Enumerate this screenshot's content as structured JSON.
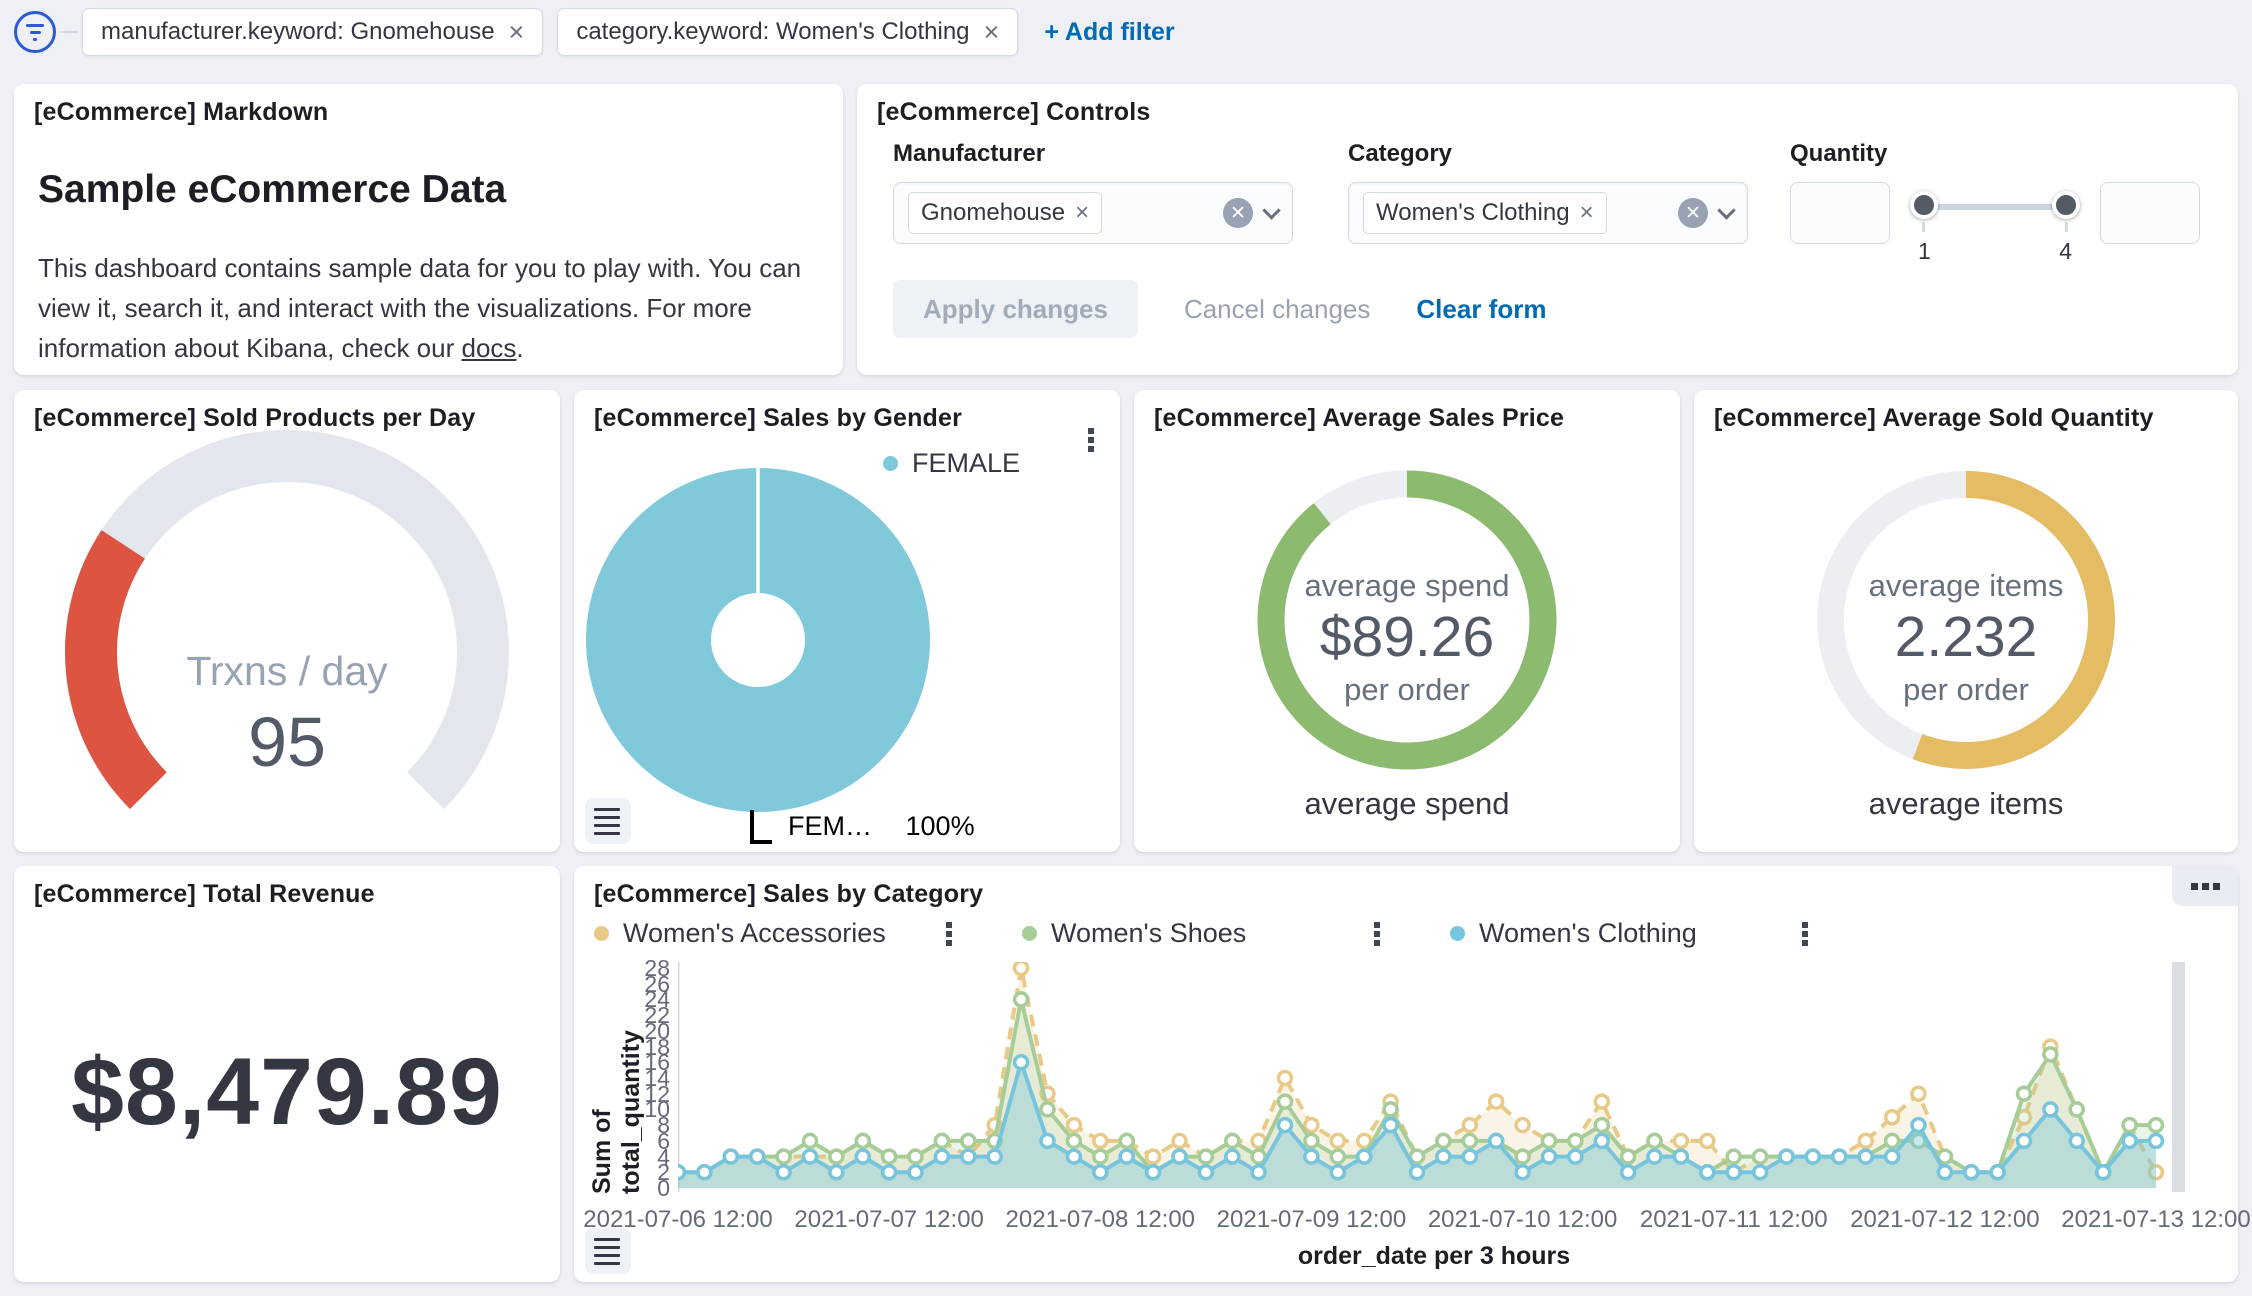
{
  "theme": {
    "link_blue": "#006BB4",
    "text": "#343741",
    "subdued": "#69707d",
    "page_bg": "#eef0f5",
    "panel_bg": "#ffffff",
    "border": "#d3dae6"
  },
  "filter_bar": {
    "pills": [
      {
        "label": "manufacturer.keyword: Gnomehouse"
      },
      {
        "label": "category.keyword: Women's Clothing"
      }
    ],
    "add_filter": "+ Add filter"
  },
  "panels": {
    "markdown": {
      "title": "[eCommerce] Markdown",
      "heading": "Sample eCommerce Data",
      "body_line1": "This dashboard contains sample data for you to play with. You can",
      "body_line2": "view it, search it, and interact with the visualizations. For more",
      "body_line3_prefix": "information about Kibana, check our ",
      "link_text": "docs",
      "body_line3_suffix": "."
    },
    "controls": {
      "title": "[eCommerce] Controls",
      "manufacturer_label": "Manufacturer",
      "manufacturer_selected": "Gnomehouse",
      "category_label": "Category",
      "category_selected": "Women's Clothing",
      "quantity_label": "Quantity",
      "quantity_min": "1",
      "quantity_max": "4",
      "apply": "Apply changes",
      "cancel": "Cancel changes",
      "clear": "Clear form"
    },
    "gauge": {
      "title": "[eCommerce] Sold Products per Day"
    },
    "gender": {
      "title": "[eCommerce] Sales by Gender"
    },
    "avg_price": {
      "title": "[eCommerce] Average Sales Price"
    },
    "avg_qty": {
      "title": "[eCommerce] Average Sold Quantity"
    },
    "revenue": {
      "title": "[eCommerce] Total Revenue"
    },
    "category": {
      "title": "[eCommerce] Sales by Category"
    }
  },
  "chart_data": [
    {
      "id": "sold-products-gauge",
      "type": "gauge",
      "label": "Trxns / day",
      "value": "95",
      "arc_fraction": 0.29,
      "color": "#DD5441",
      "track_color": "#E3E6EC"
    },
    {
      "id": "sales-by-gender-donut",
      "type": "pie",
      "slices": [
        {
          "label": "FEMALE",
          "value_pct": 100,
          "color": "#7FC9DB"
        }
      ],
      "callout_label": "FEM…",
      "callout_value": "100%"
    },
    {
      "id": "average-sales-price-goal",
      "type": "goal",
      "center_top": "average spend",
      "center_value": "$89.26",
      "center_bottom": "per order",
      "bottom_label": "average spend",
      "value": 89.26,
      "fraction": 0.8926,
      "color": "#8CBB6F",
      "track_color": "#ECEEF1"
    },
    {
      "id": "average-sold-quantity-goal",
      "type": "goal",
      "center_top": "average items",
      "center_value": "2.232",
      "center_bottom": "per order",
      "bottom_label": "average items",
      "value": 2.232,
      "fraction": 0.558,
      "color": "#E3BC63",
      "track_color": "#ECEEF1"
    },
    {
      "id": "total-revenue-metric",
      "type": "metric",
      "display": "$8,479.89"
    },
    {
      "id": "sales-by-category-timeseries",
      "type": "line",
      "title": "[eCommerce] Sales by Category",
      "xlabel": "order_date per 3 hours",
      "ylabel": "Sum of total_quantity",
      "ylim": [
        0,
        28
      ],
      "y_ticks": [
        0,
        2,
        4,
        6,
        8,
        10,
        12,
        14,
        16,
        18,
        20,
        22,
        24,
        26,
        28
      ],
      "x_tick_labels": [
        "2021-07-06 12:00",
        "2021-07-07 12:00",
        "2021-07-08 12:00",
        "2021-07-09 12:00",
        "2021-07-10 12:00",
        "2021-07-11 12:00",
        "2021-07-12 12:00",
        "2021-07-13 12:00"
      ],
      "x_tick_indices": [
        0,
        8,
        16,
        24,
        32,
        40,
        48,
        56
      ],
      "x_step": "3h",
      "legend_position": "top",
      "grid": false,
      "series": [
        {
          "name": "Women's Accessories",
          "color": "#E8C987",
          "dashed": true,
          "values": [
            2,
            2,
            4,
            4,
            4,
            4,
            4,
            6,
            4,
            4,
            6,
            4,
            8,
            28,
            12,
            8,
            6,
            6,
            4,
            6,
            4,
            6,
            6,
            14,
            8,
            6,
            6,
            11,
            4,
            6,
            8,
            11,
            8,
            6,
            6,
            11,
            4,
            6,
            6,
            6,
            2,
            4,
            4,
            4,
            4,
            6,
            9,
            12,
            4,
            2,
            2,
            9,
            18,
            10,
            2,
            8,
            2
          ]
        },
        {
          "name": "Women's Shoes",
          "color": "#A6CD97",
          "dashed": false,
          "values": [
            2,
            2,
            4,
            4,
            4,
            6,
            4,
            6,
            4,
            4,
            6,
            6,
            6,
            24,
            10,
            6,
            4,
            6,
            2,
            4,
            4,
            6,
            4,
            11,
            6,
            4,
            4,
            10,
            4,
            6,
            6,
            6,
            4,
            6,
            6,
            8,
            4,
            6,
            4,
            2,
            4,
            4,
            4,
            4,
            4,
            4,
            6,
            6,
            4,
            2,
            2,
            12,
            17,
            10,
            2,
            8,
            8
          ]
        },
        {
          "name": "Women's Clothing",
          "color": "#77C4DD",
          "dashed": false,
          "values": [
            2,
            2,
            4,
            4,
            2,
            4,
            2,
            4,
            2,
            2,
            4,
            4,
            4,
            16,
            6,
            4,
            2,
            4,
            2,
            4,
            2,
            4,
            2,
            8,
            4,
            2,
            4,
            8,
            2,
            4,
            4,
            6,
            2,
            4,
            4,
            6,
            2,
            4,
            4,
            2,
            2,
            2,
            4,
            4,
            4,
            4,
            4,
            8,
            2,
            2,
            2,
            6,
            10,
            6,
            2,
            6,
            6
          ]
        }
      ]
    }
  ]
}
